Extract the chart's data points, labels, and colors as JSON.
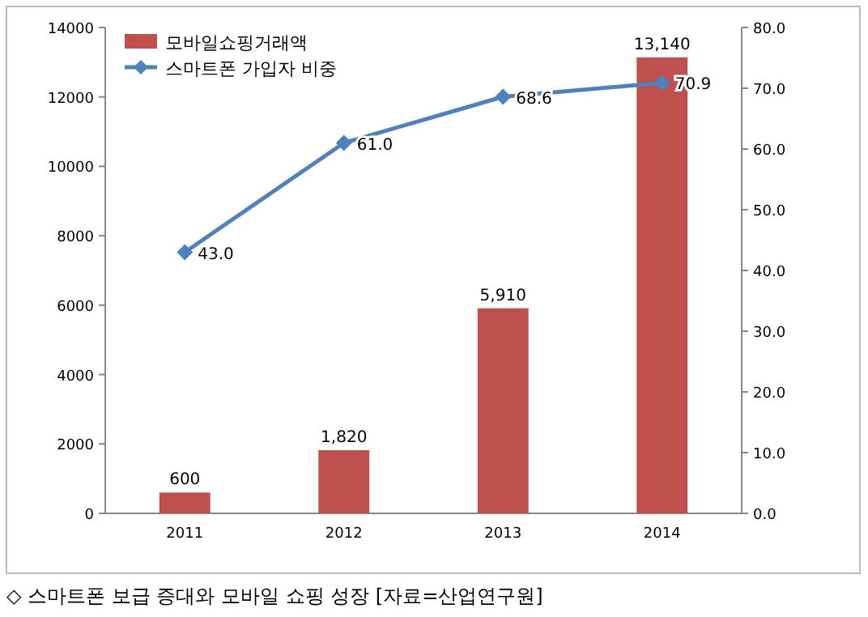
{
  "chart_data": {
    "type": "bar",
    "categories": [
      "2011",
      "2012",
      "2013",
      "2014"
    ],
    "series": [
      {
        "name": "모바일쇼핑거래액",
        "color": "#c0504d",
        "values": [
          600,
          1820,
          5910,
          13140
        ],
        "value_labels": [
          "600",
          "1,820",
          "5,910",
          "13,140"
        ]
      },
      {
        "name": "스마트폰 가입자 비중",
        "type": "line",
        "axis": "y2",
        "color": "#4f81bd",
        "marker": "diamond",
        "values": [
          43.0,
          61.0,
          68.6,
          70.9
        ],
        "value_labels": [
          "43.0",
          "61.0",
          "68.6",
          "70.9"
        ]
      }
    ],
    "ylim": [
      0,
      14000
    ],
    "yticks": [
      0,
      2000,
      4000,
      6000,
      8000,
      10000,
      12000,
      14000
    ],
    "y2lim": [
      0,
      80
    ],
    "y2ticks": [
      {
        "value": 0,
        "label": "0.0"
      },
      {
        "value": 10,
        "label": "10.0"
      },
      {
        "value": 20,
        "label": "20.0"
      },
      {
        "value": 30,
        "label": "30.0"
      },
      {
        "value": 40,
        "label": "40.0"
      },
      {
        "value": 50,
        "label": "50.0"
      },
      {
        "value": 60,
        "label": "60.0"
      },
      {
        "value": 70,
        "label": "70.0"
      },
      {
        "value": 80,
        "label": "80.0"
      }
    ],
    "legend": "top left",
    "grid": false,
    "annotations": [
      "◇ 스마트폰 보급 증대와 모바일 쇼핑 성장 [자료=산업연구원]"
    ]
  }
}
